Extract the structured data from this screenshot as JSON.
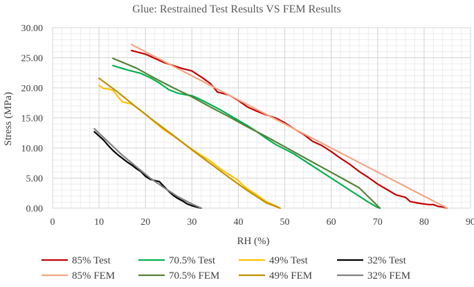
{
  "chart_data": {
    "type": "line",
    "title": "Glue: Restrained Test Results VS FEM Results",
    "xlabel": "RH (%)",
    "ylabel": "Stress (MPa)",
    "xlim": [
      0,
      90
    ],
    "ylim": [
      0,
      30
    ],
    "xticks": [
      "0",
      "10",
      "20",
      "30",
      "40",
      "50",
      "60",
      "70",
      "80",
      "90"
    ],
    "yticks": [
      "0.00",
      "5.00",
      "10.00",
      "15.00",
      "20.00",
      "25.00",
      "30.00"
    ],
    "grid": true,
    "legend_position": "bottom",
    "series": [
      {
        "name": "85% Test",
        "color": "#c00000",
        "x": [
          17,
          20,
          24,
          28,
          30,
          32,
          34,
          35.5,
          37,
          38,
          40,
          42,
          44,
          46,
          48,
          50,
          52,
          54,
          56,
          58,
          60,
          62,
          64,
          66,
          68,
          70,
          72,
          74,
          76,
          77,
          79,
          81,
          82,
          83,
          84,
          85
        ],
        "y": [
          26.2,
          25.6,
          24.2,
          23.2,
          22.8,
          21.8,
          20.7,
          19.3,
          19.0,
          18.8,
          17.9,
          16.8,
          16.1,
          15.5,
          15.0,
          14.2,
          13.2,
          12.3,
          11.1,
          10.4,
          9.4,
          8.3,
          7.3,
          6.1,
          5.1,
          4.0,
          3.1,
          2.2,
          1.8,
          1.1,
          0.8,
          0.6,
          0.6,
          0.3,
          0.2,
          0.0
        ]
      },
      {
        "name": "70.5% Test",
        "color": "#00b050",
        "x": [
          13,
          16,
          19,
          21,
          23,
          25,
          27,
          29,
          30,
          32,
          34,
          36,
          38,
          40,
          42,
          44,
          46,
          48,
          50,
          52,
          54,
          56,
          58,
          60,
          62,
          64,
          66,
          68,
          70,
          70.5
        ],
        "y": [
          23.7,
          23.0,
          22.4,
          21.7,
          20.8,
          19.7,
          19.1,
          18.8,
          18.7,
          18.0,
          17.2,
          16.4,
          15.5,
          14.6,
          13.7,
          12.7,
          11.6,
          10.6,
          9.8,
          9.0,
          8.0,
          7.0,
          6.0,
          5.0,
          4.0,
          3.0,
          2.0,
          1.0,
          0.1,
          0.0
        ]
      },
      {
        "name": "49% Test",
        "color": "#ffc000",
        "x": [
          10,
          11,
          12,
          13,
          14,
          15,
          16,
          17,
          18,
          20,
          22,
          24,
          26,
          28,
          30,
          32,
          34,
          36,
          38,
          40,
          41,
          42,
          44,
          46,
          48,
          49
        ],
        "y": [
          20.4,
          19.9,
          19.8,
          19.6,
          18.6,
          17.7,
          17.5,
          17.3,
          16.8,
          15.6,
          14.3,
          13.0,
          12.0,
          10.9,
          9.8,
          8.8,
          7.8,
          6.6,
          5.6,
          4.6,
          3.8,
          3.2,
          2.2,
          1.1,
          0.4,
          0.0
        ]
      },
      {
        "name": "32% Test",
        "color": "#000000",
        "x": [
          9,
          10,
          11,
          12,
          13,
          14,
          15,
          16,
          17,
          18,
          19,
          20,
          21,
          22,
          23,
          24,
          25,
          26,
          27,
          28,
          29,
          30,
          31,
          32
        ],
        "y": [
          12.7,
          12.0,
          11.3,
          10.4,
          9.6,
          8.9,
          8.3,
          7.7,
          7.2,
          6.6,
          6.1,
          5.3,
          4.8,
          4.6,
          4.4,
          3.6,
          2.8,
          2.1,
          1.6,
          1.2,
          0.7,
          0.4,
          0.2,
          0.0
        ]
      },
      {
        "name": "85% FEM",
        "color": "#f4a582",
        "x": [
          17,
          85
        ],
        "y": [
          27.2,
          0.0
        ]
      },
      {
        "name": "70.5% FEM",
        "color": "#548235",
        "x": [
          13,
          18,
          22,
          26,
          30,
          34,
          38,
          42,
          46,
          50,
          54,
          58,
          62,
          66,
          70.5
        ],
        "y": [
          24.9,
          23.3,
          21.6,
          20.0,
          18.5,
          16.8,
          15.2,
          13.5,
          11.9,
          10.2,
          8.5,
          6.8,
          5.1,
          3.4,
          0.0
        ]
      },
      {
        "name": "49% FEM",
        "color": "#bf9000",
        "x": [
          10,
          14,
          18,
          22,
          26,
          30,
          34,
          38,
          42,
          46,
          49
        ],
        "y": [
          21.6,
          19.3,
          16.8,
          14.4,
          12.1,
          9.7,
          7.4,
          5.1,
          2.9,
          0.9,
          0.0
        ]
      },
      {
        "name": "32% FEM",
        "color": "#808080",
        "x": [
          9,
          12,
          15,
          18,
          21,
          24,
          27,
          30,
          32
        ],
        "y": [
          13.2,
          11.0,
          8.8,
          6.9,
          5.0,
          3.4,
          1.9,
          0.7,
          0.0
        ]
      }
    ],
    "legend_order": [
      0,
      1,
      2,
      3,
      4,
      5,
      6,
      7
    ]
  }
}
